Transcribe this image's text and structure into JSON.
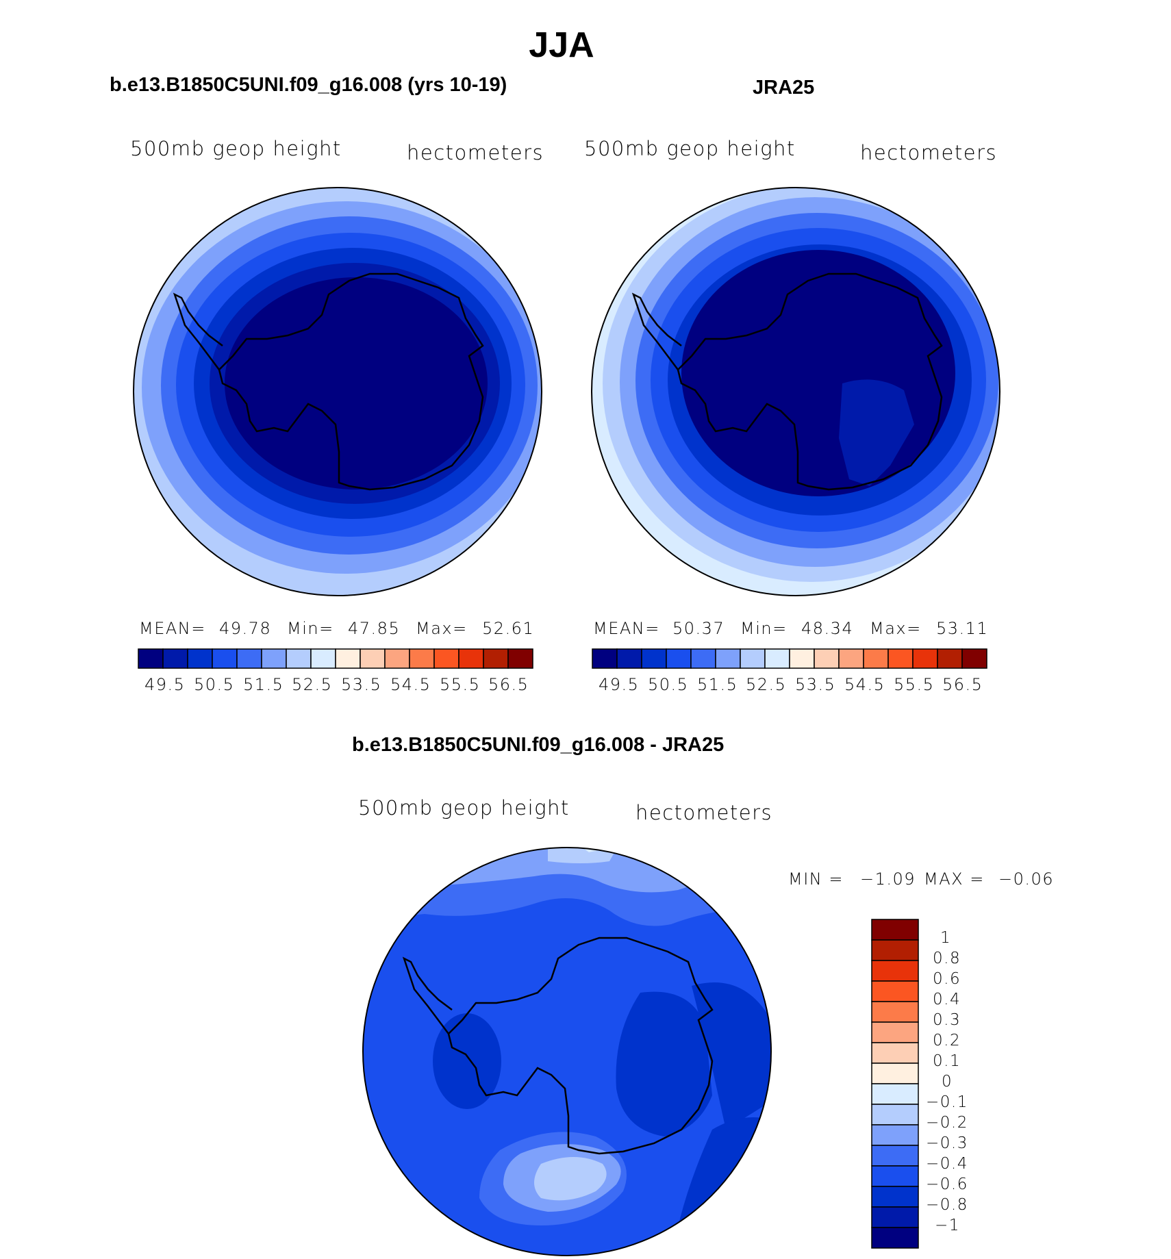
{
  "main_title": "JJA",
  "panels": [
    {
      "title": "b.e13.B1850C5UNI.f09_g16.008 (yrs 10-19)",
      "variable": "500mb geop height",
      "units": "hectometers",
      "stats": {
        "mean_label": "MEAN=",
        "mean": "49.78",
        "min_label": "Min=",
        "min": "47.85",
        "max_label": "Max=",
        "max": "52.61"
      }
    },
    {
      "title": "JRA25",
      "variable": "500mb geop height",
      "units": "hectometers",
      "stats": {
        "mean_label": "MEAN=",
        "mean": "50.37",
        "min_label": "Min=",
        "min": "48.34",
        "max_label": "Max=",
        "max": "53.11"
      }
    }
  ],
  "abs_colorbar": {
    "colors": [
      "#000080",
      "#001aaa",
      "#0033cc",
      "#1a4fee",
      "#3d6cf5",
      "#7ea1fb",
      "#b4cdfd",
      "#d9ecff",
      "#fff0e0",
      "#fdcfb5",
      "#fca580",
      "#fc7b49",
      "#fb5622",
      "#e8330a",
      "#b21f02",
      "#800000"
    ],
    "labels": [
      "49.5",
      "50.5",
      "51.5",
      "52.5",
      "53.5",
      "54.5",
      "55.5",
      "56.5"
    ]
  },
  "diff_panel": {
    "title": "b.e13.B1850C5UNI.f09_g16.008 - JRA25",
    "variable": "500mb geop height",
    "units": "hectometers",
    "min_label": "MIN =",
    "min": "−1.09",
    "max_label": "MAX =",
    "max": "−0.06"
  },
  "diff_colorbar": {
    "colors_top_to_bottom": [
      "#800000",
      "#b21f02",
      "#e8330a",
      "#fb5622",
      "#fc7b49",
      "#fca580",
      "#fdcfb5",
      "#fff0e0",
      "#d9ecff",
      "#b4cdfd",
      "#7ea1fb",
      "#3d6cf5",
      "#1a4fee",
      "#0033cc",
      "#001aaa",
      "#000080"
    ],
    "labels_top_to_bottom": [
      "1",
      "0.8",
      "0.6",
      "0.4",
      "0.3",
      "0.2",
      "0.1",
      "0",
      "−0.1",
      "−0.2",
      "−0.3",
      "−0.4",
      "−0.6",
      "−0.8",
      "−1"
    ]
  }
}
